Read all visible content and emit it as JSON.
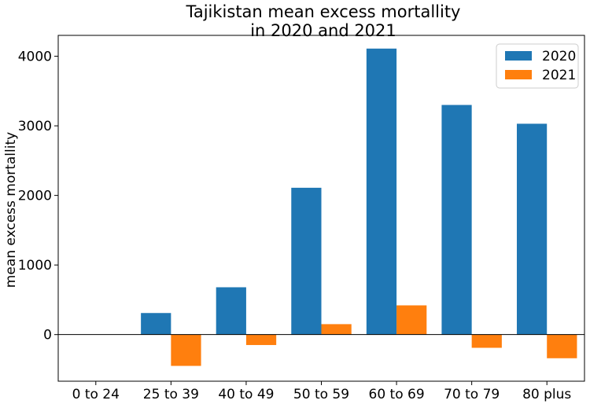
{
  "colors": {
    "series_2020": "#1f77b4",
    "series_2021": "#ff7f0e"
  },
  "chart_data": {
    "type": "bar",
    "title_line1": "Tajikistan mean excess mortallity",
    "title_line2": "in 2020 and 2021",
    "xlabel": "",
    "ylabel": "mean excess mortallity",
    "categories": [
      "0 to 24",
      "25 to 39",
      "40 to 49",
      "50 to 59",
      "60 to 69",
      "70 to 79",
      "80 plus"
    ],
    "series": [
      {
        "name": "2020",
        "values": [
          0,
          310,
          680,
          2110,
          4110,
          3300,
          3030
        ]
      },
      {
        "name": "2021",
        "values": [
          0,
          -450,
          -150,
          150,
          420,
          -190,
          -340
        ]
      }
    ],
    "ylim": [
      -670,
      4300
    ],
    "yticks": [
      0,
      1000,
      2000,
      3000,
      4000
    ],
    "ytick_labels": [
      "0",
      "1000",
      "2000",
      "3000",
      "4000"
    ],
    "zero_line": true,
    "grid": false,
    "legend_position": "top-right"
  }
}
